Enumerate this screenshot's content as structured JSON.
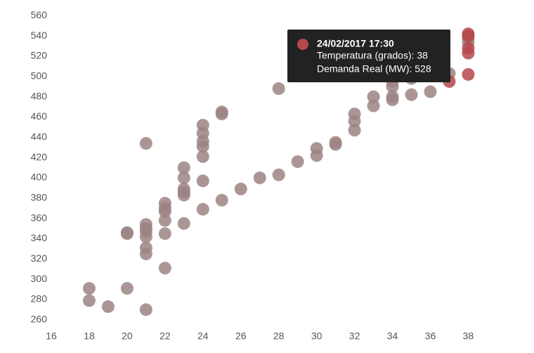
{
  "chart_data": {
    "type": "scatter",
    "series": [
      {
        "color": "#9c8484",
        "x": [
          18,
          18,
          19,
          20,
          20,
          20,
          21,
          21,
          21,
          21,
          21,
          21,
          21,
          21,
          22,
          22,
          22,
          22,
          22,
          22,
          23,
          23,
          23,
          23,
          23,
          23,
          24,
          24,
          24,
          24,
          24,
          24,
          24,
          25,
          25,
          25,
          26,
          27,
          28,
          28,
          29,
          30,
          30,
          31,
          31,
          32,
          32,
          32,
          33,
          33,
          34,
          34,
          34,
          34,
          35,
          35,
          36,
          37,
          38,
          38
        ],
        "values": [
          291,
          279,
          273,
          291,
          346,
          345,
          434,
          354,
          350,
          347,
          342,
          331,
          325,
          270,
          375,
          370,
          367,
          358,
          345,
          311,
          410,
          400,
          389,
          386,
          383,
          355,
          452,
          444,
          436,
          431,
          421,
          397,
          369,
          465,
          463,
          378,
          389,
          400,
          488,
          403,
          416,
          429,
          422,
          435,
          433,
          463,
          456,
          447,
          480,
          471,
          495,
          490,
          480,
          477,
          498,
          482,
          485,
          503,
          538,
          534
        ]
      },
      {
        "color": "#b5484c",
        "x": [
          37,
          38,
          38,
          38,
          38,
          38
        ],
        "values": [
          495,
          542,
          528,
          523,
          502,
          540
        ]
      }
    ],
    "xlim": [
      16,
      38.8
    ],
    "xticks": [
      16,
      18,
      20,
      22,
      24,
      26,
      28,
      30,
      32,
      34,
      36,
      38
    ],
    "ylim": [
      255,
      565
    ],
    "yticks": [
      260,
      280,
      300,
      320,
      340,
      360,
      380,
      400,
      420,
      440,
      460,
      480,
      500,
      520,
      540,
      560
    ],
    "grid": false,
    "tooltip": {
      "title": "24/02/2017 17:30",
      "lines": [
        "Temperatura (grados): 38",
        "Demanda Real (MW): 528"
      ],
      "color": "#b5484c"
    }
  }
}
